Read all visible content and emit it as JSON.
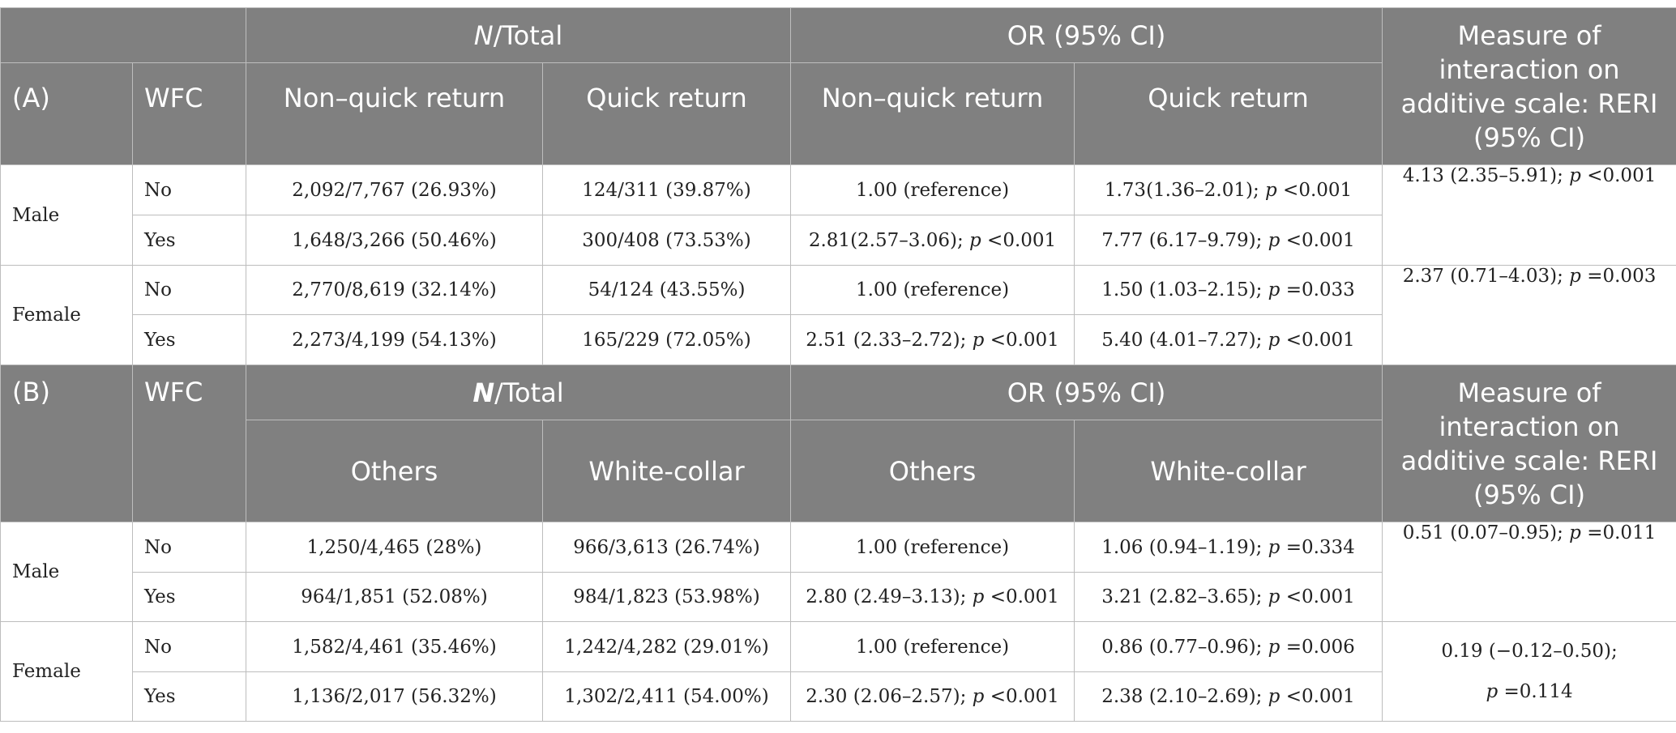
{
  "section_a": {
    "header": {
      "n_total_n": "N",
      "n_total_rest": "/Total",
      "or_label": "OR (95% CI)",
      "reri_label": "Measure of interaction on additive scale: RERI (95% CI)",
      "panel_label": "(A)",
      "wfc_label": "WFC",
      "col_n1": "Non–quick return",
      "col_n2": "Quick return",
      "col_or1": "Non–quick return",
      "col_or2": "Quick return"
    },
    "rows": [
      {
        "sex": "Male",
        "wfc": "No",
        "n1": "2,092/7,767 (26.93%)",
        "n2": "124/311 (39.87%)",
        "or1_a": "1.00 (reference)",
        "or1_b": "",
        "or1_c": "",
        "or2_a": "1.73(1.36–2.01); ",
        "or2_b": "p",
        "or2_c": " <0.001",
        "reri_a": "4.13 (2.35–5.91); ",
        "reri_b": "p",
        "reri_c": " <0.001"
      },
      {
        "sex": "",
        "wfc": "Yes",
        "n1": "1,648/3,266 (50.46%)",
        "n2": "300/408 (73.53%)",
        "or1_a": "2.81(2.57–3.06); ",
        "or1_b": "p",
        "or1_c": " <0.001",
        "or2_a": "7.77 (6.17–9.79); ",
        "or2_b": "p",
        "or2_c": " <0.001"
      },
      {
        "sex": "Female",
        "wfc": "No",
        "n1": "2,770/8,619 (32.14%)",
        "n2": "54/124 (43.55%)",
        "or1_a": "1.00 (reference)",
        "or1_b": "",
        "or1_c": "",
        "or2_a": "1.50 (1.03–2.15); ",
        "or2_b": "p",
        "or2_c": " =0.033",
        "reri_a": "2.37 (0.71–4.03); ",
        "reri_b": "p",
        "reri_c": " =0.003"
      },
      {
        "sex": "",
        "wfc": "Yes",
        "n1": "2,273/4,199 (54.13%)",
        "n2": "165/229 (72.05%)",
        "or1_a": "2.51 (2.33–2.72); ",
        "or1_b": "p",
        "or1_c": " <0.001",
        "or2_a": "5.40 (4.01–7.27); ",
        "or2_b": "p",
        "or2_c": " <0.001"
      }
    ]
  },
  "section_b": {
    "header": {
      "panel_label": "(B)",
      "wfc_label": "WFC",
      "n_total_n": "N",
      "n_total_rest": "/Total",
      "or_label": "OR (95% CI)",
      "reri_label": "Measure of interaction on additive scale: RERI (95% CI)",
      "col_n1": "Others",
      "col_n2": "White-collar",
      "col_or1": "Others",
      "col_or2": "White-collar"
    },
    "rows": [
      {
        "sex": "Male",
        "wfc": "No",
        "n1": "1,250/4,465 (28%)",
        "n2": "966/3,613 (26.74%)",
        "or1_a": "1.00 (reference)",
        "or1_b": "",
        "or1_c": "",
        "or2_a": "1.06 (0.94–1.19); ",
        "or2_b": "p",
        "or2_c": " =0.334",
        "reri_a": "0.51 (0.07–0.95); ",
        "reri_b": "p",
        "reri_c": " =0.011"
      },
      {
        "sex": "",
        "wfc": "Yes",
        "n1": "964/1,851 (52.08%)",
        "n2": "984/1,823 (53.98%)",
        "or1_a": "2.80 (2.49–3.13); ",
        "or1_b": "p",
        "or1_c": " <0.001",
        "or2_a": "3.21 (2.82–3.65); ",
        "or2_b": "p",
        "or2_c": " <0.001"
      },
      {
        "sex": "Female",
        "wfc": "No",
        "n1": "1,582/4,461 (35.46%)",
        "n2": "1,242/4,282 (29.01%)",
        "or1_a": "1.00 (reference)",
        "or1_b": "",
        "or1_c": "",
        "or2_a": "0.86 (0.77–0.96); ",
        "or2_b": "p",
        "or2_c": " =0.006",
        "reri_a": "0.19 (−0.12–0.50);",
        "reri_b": "p",
        "reri_c": " =0.114"
      },
      {
        "sex": "",
        "wfc": "Yes",
        "n1": "1,136/2,017 (56.32%)",
        "n2": "1,302/2,411 (54.00%)",
        "or1_a": "2.30 (2.06–2.57); ",
        "or1_b": "p",
        "or1_c": " <0.001",
        "or2_a": "2.38 (2.10–2.69); ",
        "or2_b": "p",
        "or2_c": " <0.001"
      }
    ]
  }
}
